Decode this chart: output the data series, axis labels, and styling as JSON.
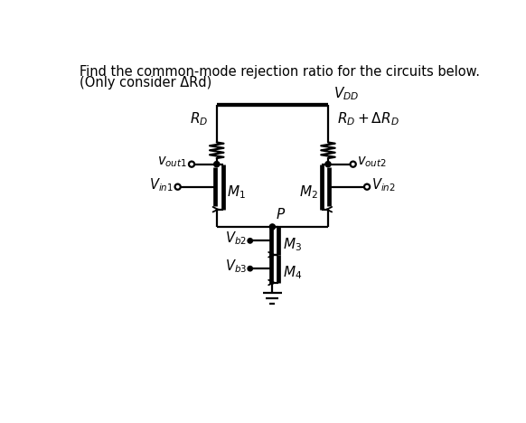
{
  "title_line1": "Find the common-mode rejection ratio for the circuits below.",
  "title_line2": "(Only consider ΔRd)",
  "bg_color": "#ffffff",
  "line_color": "#000000",
  "text_color": "#000000",
  "figsize": [
    5.82,
    4.68
  ],
  "dpi": 100
}
